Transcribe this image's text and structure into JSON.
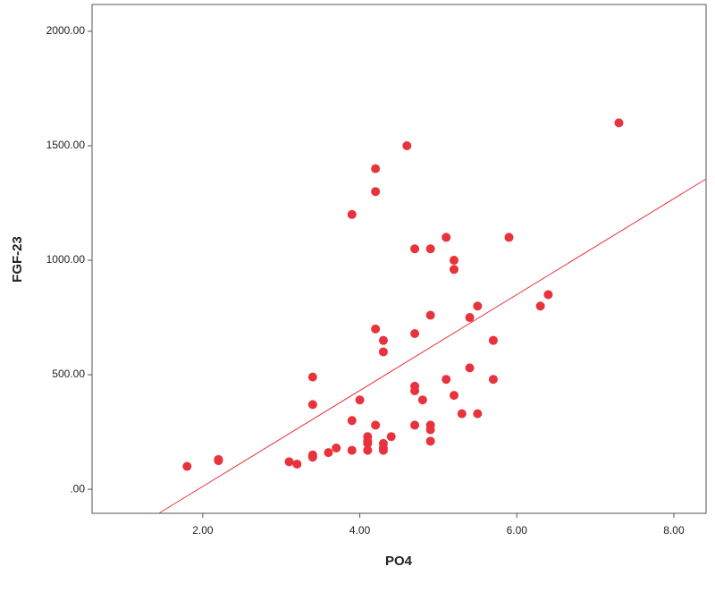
{
  "chart_data": {
    "type": "scatter",
    "xlabel": "PO4",
    "ylabel": "FGF-23",
    "color": "#e8323c",
    "x": [
      1.8,
      2.2,
      2.2,
      3.1,
      3.2,
      3.4,
      3.4,
      3.4,
      3.4,
      3.6,
      3.7,
      3.9,
      3.9,
      3.9,
      4.0,
      4.1,
      4.1,
      4.1,
      4.1,
      4.2,
      4.2,
      4.2,
      4.2,
      4.3,
      4.3,
      4.3,
      4.3,
      4.3,
      4.4,
      4.6,
      4.7,
      4.7,
      4.7,
      4.7,
      4.7,
      4.8,
      4.9,
      4.9,
      4.9,
      4.9,
      4.9,
      5.1,
      5.1,
      5.2,
      5.2,
      5.2,
      5.3,
      5.4,
      5.4,
      5.5,
      5.5,
      5.7,
      5.7,
      5.9,
      6.3,
      6.4,
      7.3
    ],
    "values": [
      100,
      130,
      125,
      120,
      110,
      150,
      140,
      370,
      490,
      160,
      180,
      170,
      300,
      1200,
      390,
      230,
      210,
      200,
      170,
      280,
      700,
      1300,
      1400,
      200,
      180,
      170,
      600,
      650,
      230,
      1500,
      1050,
      680,
      450,
      430,
      280,
      390,
      1050,
      760,
      280,
      260,
      210,
      1100,
      480,
      1000,
      960,
      410,
      330,
      750,
      530,
      800,
      330,
      650,
      480,
      1100,
      800,
      850,
      1600
    ],
    "fit_line": {
      "x": [
        1.44,
        8.41
      ],
      "values": [
        -105,
        1355
      ]
    },
    "xlim": [
      0.59,
      8.41
    ],
    "ylim": [
      -105,
      2117
    ],
    "xticks": [
      {
        "value": 2,
        "label": "2.00"
      },
      {
        "value": 4,
        "label": "4.00"
      },
      {
        "value": 6,
        "label": "6.00"
      },
      {
        "value": 8,
        "label": "8.00"
      }
    ],
    "yticks": [
      {
        "value": 0,
        "label": ".00"
      },
      {
        "value": 500,
        "label": "500.00"
      },
      {
        "value": 1000,
        "label": "1000.00"
      },
      {
        "value": 1500,
        "label": "1500.00"
      },
      {
        "value": 2000,
        "label": "2000.00"
      }
    ]
  }
}
